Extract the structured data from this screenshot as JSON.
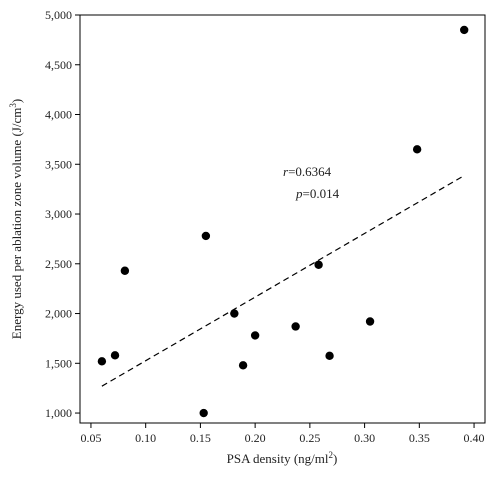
{
  "chart_data": {
    "type": "scatter",
    "xlabel": "PSA density (ng/ml",
    "xlabel_sup": "2",
    "xlabel_end": ")",
    "ylabel": "Energy used per ablation zone volume (J/cm",
    "ylabel_sup": "3",
    "ylabel_end": ")",
    "xlim": [
      0.04,
      0.41
    ],
    "ylim": [
      900,
      5000
    ],
    "x_ticks": [
      0.05,
      0.1,
      0.15,
      0.2,
      0.25,
      0.3,
      0.35,
      0.4
    ],
    "x_tick_labels": [
      "0.05",
      "0.10",
      "0.15",
      "0.20",
      "0.25",
      "0.30",
      "0.35",
      "0.40"
    ],
    "y_ticks": [
      1000,
      1500,
      2000,
      2500,
      3000,
      3500,
      4000,
      4500,
      5000
    ],
    "y_tick_labels": [
      "1,000",
      "1,500",
      "2,000",
      "2,500",
      "3,000",
      "3,500",
      "4,000",
      "4,500",
      "5,000"
    ],
    "points": [
      {
        "x": 0.06,
        "y": 1520
      },
      {
        "x": 0.072,
        "y": 1580
      },
      {
        "x": 0.081,
        "y": 2430
      },
      {
        "x": 0.153,
        "y": 1000
      },
      {
        "x": 0.155,
        "y": 2780
      },
      {
        "x": 0.181,
        "y": 2000
      },
      {
        "x": 0.189,
        "y": 1480
      },
      {
        "x": 0.2,
        "y": 1780
      },
      {
        "x": 0.237,
        "y": 1870
      },
      {
        "x": 0.258,
        "y": 2490
      },
      {
        "x": 0.268,
        "y": 1575
      },
      {
        "x": 0.305,
        "y": 1920
      },
      {
        "x": 0.348,
        "y": 3650
      },
      {
        "x": 0.391,
        "y": 4850
      }
    ],
    "trendline": {
      "style": "dashed",
      "x": [
        0.06,
        0.39
      ],
      "y": [
        1270,
        3380
      ]
    },
    "annotations": {
      "r_symbol": "r",
      "r_value": "=0.6364",
      "p_symbol": "p",
      "p_value": "=0.014"
    },
    "grid": false,
    "legend": false
  }
}
